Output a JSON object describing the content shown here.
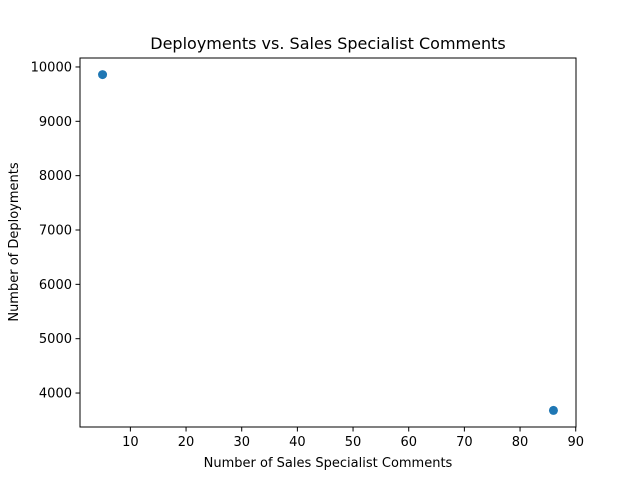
{
  "chart_data": {
    "type": "scatter",
    "title": "Deployments vs. Sales Specialist Comments",
    "xlabel": "Number of Sales Specialist Comments",
    "ylabel": "Number of Deployments",
    "xlim": [
      0.95,
      90.05
    ],
    "ylim": [
      3375,
      10165
    ],
    "xticks": [
      10,
      20,
      30,
      40,
      50,
      60,
      70,
      80,
      90
    ],
    "yticks": [
      4000,
      5000,
      6000,
      7000,
      8000,
      9000,
      10000
    ],
    "grid": false,
    "legend": false,
    "marker_color": "#1f77b4",
    "points": [
      {
        "x": 5,
        "y": 9860
      },
      {
        "x": 86,
        "y": 3680
      }
    ]
  }
}
